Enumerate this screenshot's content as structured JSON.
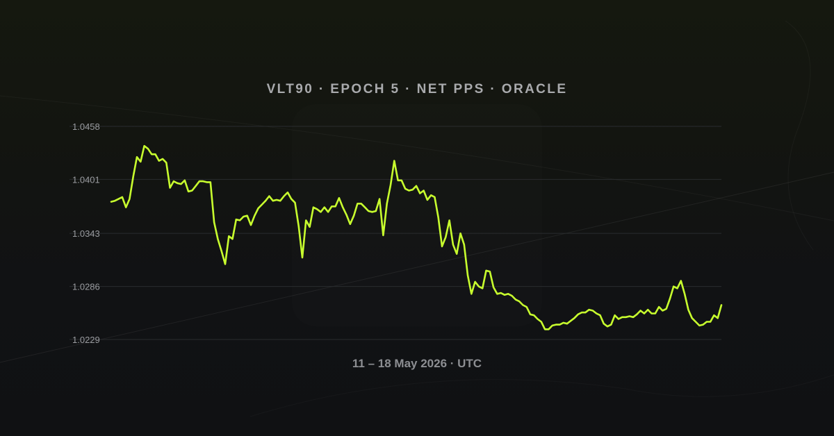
{
  "header": {
    "title": "VLT90 · EPOCH 5 · NET PPS · ORACLE"
  },
  "footer": {
    "caption": "11 – 18 May 2026 · UTC"
  },
  "colors": {
    "background": "#111214",
    "line": "#c8ff2e",
    "grid": "#2a2c2f",
    "text": "#a9aaad"
  },
  "chart_data": {
    "type": "line",
    "title": "VLT90 · EPOCH 5 · NET PPS · ORACLE",
    "xlabel": "11 – 18 May 2026 · UTC",
    "ylabel": "",
    "yticks": [
      "1.0458",
      "1.0401",
      "1.0343",
      "1.0286",
      "1.0229"
    ],
    "ylim": [
      1.0229,
      1.0458
    ],
    "grid": true,
    "legend": "none",
    "series": [
      {
        "values": [
          1.0377,
          1.0378,
          1.038,
          1.0382,
          1.0371,
          1.038,
          1.0404,
          1.0425,
          1.042,
          1.0437,
          1.0434,
          1.0428,
          1.0428,
          1.0421,
          1.0423,
          1.0419,
          1.0392,
          1.0399,
          1.0397,
          1.0396,
          1.04,
          1.0388,
          1.0389,
          1.0394,
          1.0399,
          1.0399,
          1.0398,
          1.0398,
          1.0355,
          1.0337,
          1.0324,
          1.031,
          1.034,
          1.0337,
          1.0358,
          1.0357,
          1.0361,
          1.0362,
          1.0352,
          1.0362,
          1.037,
          1.0374,
          1.0378,
          1.0383,
          1.0378,
          1.0379,
          1.0378,
          1.0383,
          1.0387,
          1.038,
          1.0376,
          1.0351,
          1.0317,
          1.0357,
          1.035,
          1.0371,
          1.0369,
          1.0366,
          1.0371,
          1.0366,
          1.0372,
          1.0372,
          1.0381,
          1.0371,
          1.0363,
          1.0353,
          1.0362,
          1.0375,
          1.0375,
          1.0371,
          1.0367,
          1.0366,
          1.0367,
          1.038,
          1.0341,
          1.0375,
          1.0395,
          1.0421,
          1.04,
          1.04,
          1.0391,
          1.0389,
          1.039,
          1.0394,
          1.0386,
          1.0389,
          1.0379,
          1.0384,
          1.0382,
          1.036,
          1.0329,
          1.0339,
          1.0357,
          1.0331,
          1.0321,
          1.0343,
          1.0331,
          1.0298,
          1.0278,
          1.0291,
          1.0286,
          1.0284,
          1.0303,
          1.0302,
          1.0285,
          1.0278,
          1.0279,
          1.0277,
          1.0278,
          1.0276,
          1.0272,
          1.027,
          1.0266,
          1.0264,
          1.0256,
          1.0255,
          1.0251,
          1.0248,
          1.024,
          1.024,
          1.0244,
          1.0245,
          1.0245,
          1.0247,
          1.0246,
          1.0249,
          1.0252,
          1.0256,
          1.0258,
          1.0258,
          1.0261,
          1.026,
          1.0257,
          1.0255,
          1.0246,
          1.0243,
          1.0245,
          1.0255,
          1.0251,
          1.0253,
          1.0253,
          1.0254,
          1.0253,
          1.0256,
          1.026,
          1.0257,
          1.0261,
          1.0257,
          1.0257,
          1.0264,
          1.026,
          1.0262,
          1.0273,
          1.0286,
          1.0284,
          1.0292,
          1.0278,
          1.0261,
          1.0252,
          1.0248,
          1.0244,
          1.0245,
          1.0248,
          1.0248,
          1.0255,
          1.0252,
          1.0266
        ]
      }
    ]
  }
}
